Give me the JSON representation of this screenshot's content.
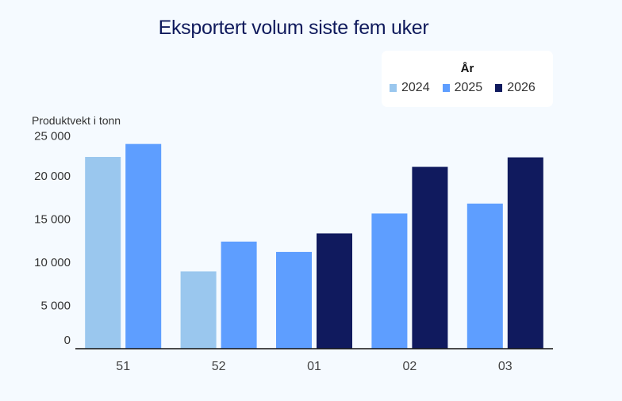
{
  "chart_data": {
    "type": "bar",
    "title": "Eksportert volum siste fem uker",
    "xlabel": "",
    "ylabel": "Produktvekt i tonn",
    "ylim": [
      0,
      25000
    ],
    "yticks": [
      0,
      5000,
      10000,
      15000,
      20000,
      25000
    ],
    "ytick_labels": [
      "0",
      "5 000",
      "10 000",
      "15 000",
      "20 000",
      "25 000"
    ],
    "categories": [
      "51",
      "52",
      "01",
      "02",
      "03"
    ],
    "legend": {
      "title": "År",
      "position": "top-right"
    },
    "grid": false,
    "series": [
      {
        "name": "2024",
        "color": "#9ac7ee",
        "values": [
          22200,
          8950,
          null,
          null,
          null
        ]
      },
      {
        "name": "2025",
        "color": "#5e9eff",
        "values": [
          23700,
          12400,
          11200,
          15650,
          16800
        ]
      },
      {
        "name": "2026",
        "color": "#101a5e",
        "values": [
          null,
          null,
          13350,
          21050,
          22150
        ]
      }
    ]
  }
}
